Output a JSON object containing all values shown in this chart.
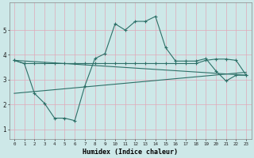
{
  "xlabel": "Humidex (Indice chaleur)",
  "bg_color": "#cde8e8",
  "grid_color": "#e0a8b8",
  "line_color": "#2d7068",
  "xlim": [
    -0.5,
    23.5
  ],
  "ylim": [
    0.6,
    6.1
  ],
  "x_ticks": [
    0,
    1,
    2,
    3,
    4,
    5,
    6,
    7,
    8,
    9,
    10,
    11,
    12,
    13,
    14,
    15,
    16,
    17,
    18,
    19,
    20,
    21,
    22,
    23
  ],
  "y_ticks": [
    1,
    2,
    3,
    4,
    5
  ],
  "line1_x": [
    0,
    1,
    2,
    3,
    4,
    5,
    6,
    7,
    8,
    9,
    10,
    11,
    12,
    13,
    14,
    15,
    16,
    17,
    18,
    19,
    20,
    21,
    22,
    23
  ],
  "line1_y": [
    3.78,
    3.65,
    3.65,
    3.65,
    3.65,
    3.65,
    3.65,
    3.65,
    3.65,
    3.65,
    3.65,
    3.65,
    3.65,
    3.65,
    3.65,
    3.65,
    3.65,
    3.65,
    3.65,
    3.78,
    3.83,
    3.83,
    3.78,
    3.18
  ],
  "line2_x": [
    0,
    23
  ],
  "line2_y": [
    2.45,
    3.3
  ],
  "line3_x": [
    0,
    23
  ],
  "line3_y": [
    3.78,
    3.18
  ],
  "line4_x": [
    0,
    1,
    2,
    3,
    4,
    5,
    6,
    7,
    8,
    9,
    10,
    11,
    12,
    13,
    14,
    15,
    16,
    17,
    18,
    19,
    20,
    21,
    22,
    23
  ],
  "line4_y": [
    3.78,
    3.65,
    2.45,
    2.05,
    1.45,
    1.45,
    1.35,
    2.75,
    3.85,
    4.05,
    5.25,
    5.0,
    5.35,
    5.35,
    5.55,
    4.3,
    3.75,
    3.75,
    3.75,
    3.85,
    3.35,
    2.95,
    3.18,
    3.18
  ]
}
